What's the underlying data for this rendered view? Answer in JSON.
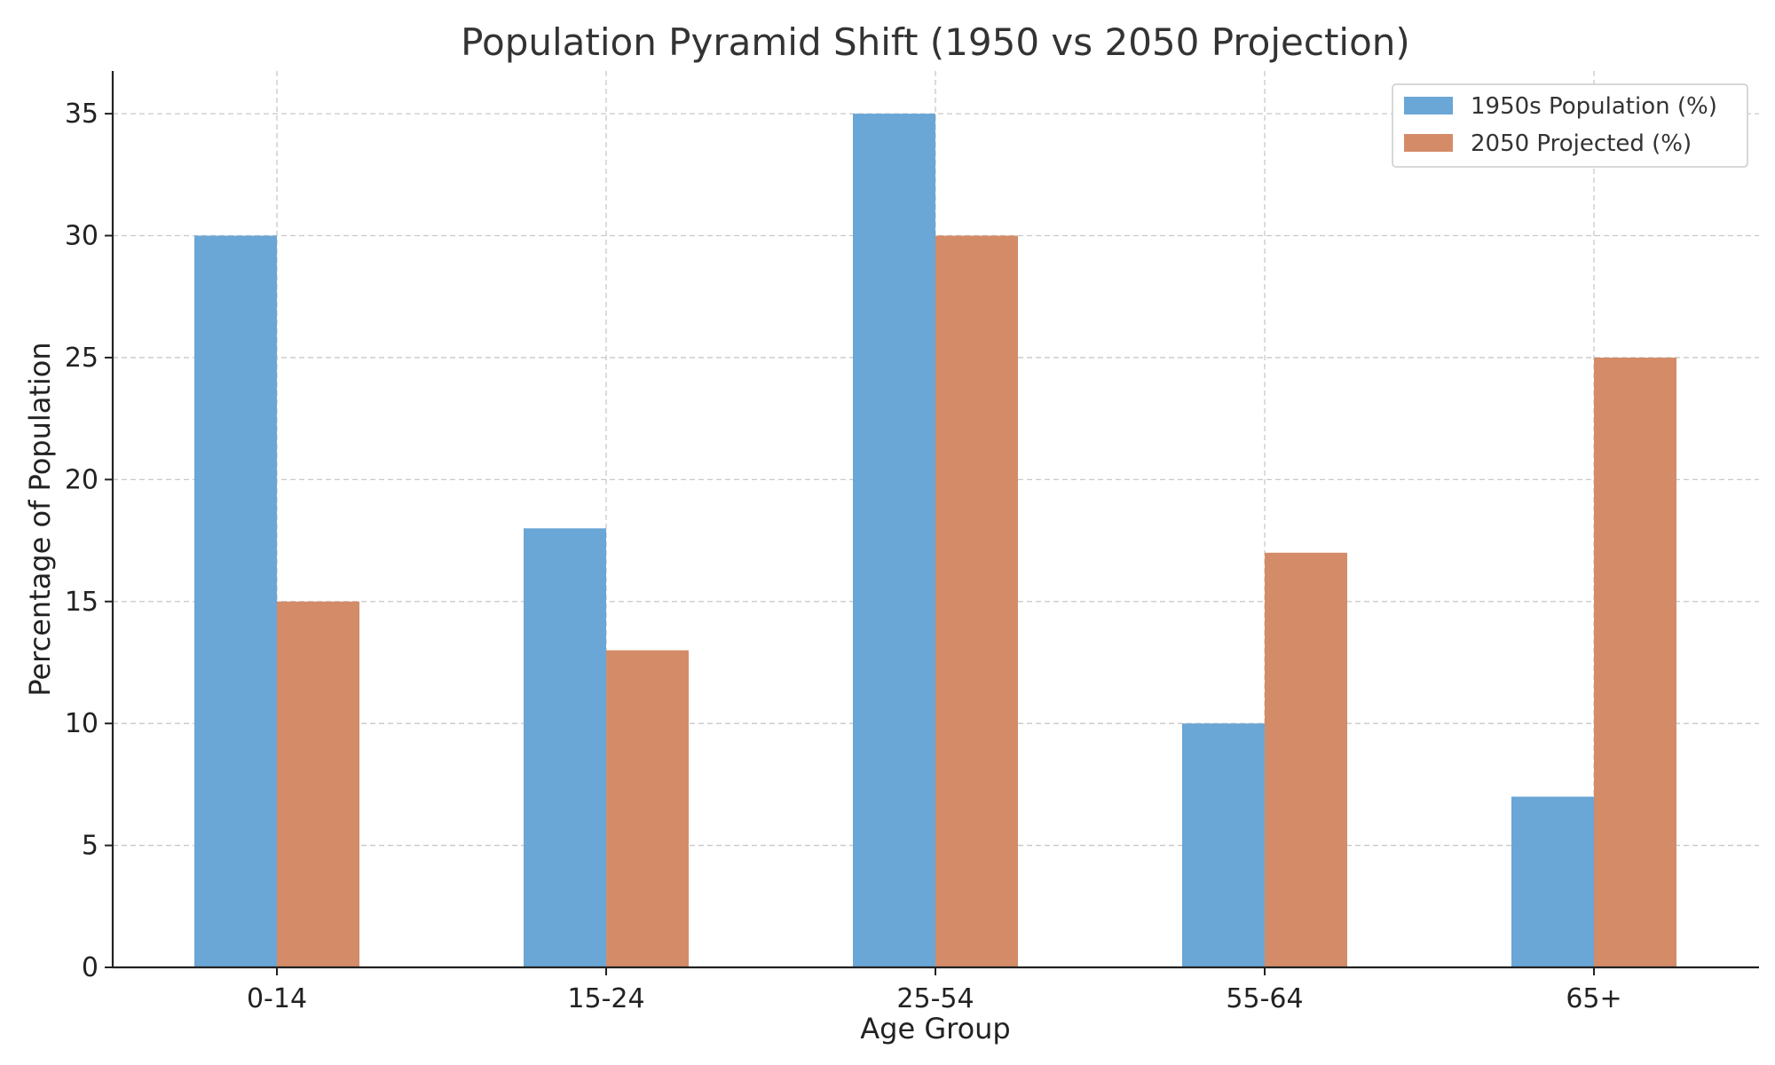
{
  "chart_data": {
    "type": "bar",
    "title": "Population Pyramid Shift (1950 vs 2050 Projection)",
    "xlabel": "Age Group",
    "ylabel": "Percentage of Population",
    "categories": [
      "0-14",
      "15-24",
      "25-54",
      "55-64",
      "65+"
    ],
    "series": [
      {
        "name": "1950s Population (%)",
        "values": [
          30,
          18,
          35,
          10,
          7
        ],
        "color": "#6aa6d6"
      },
      {
        "name": "2050 Projected (%)",
        "values": [
          15,
          13,
          30,
          17,
          25
        ],
        "color": "#d48c68"
      }
    ],
    "ylim": [
      0,
      36.75
    ],
    "yticks": [
      0,
      5,
      10,
      15,
      20,
      25,
      30,
      35
    ],
    "grid": true,
    "legend_position": "top-right"
  }
}
